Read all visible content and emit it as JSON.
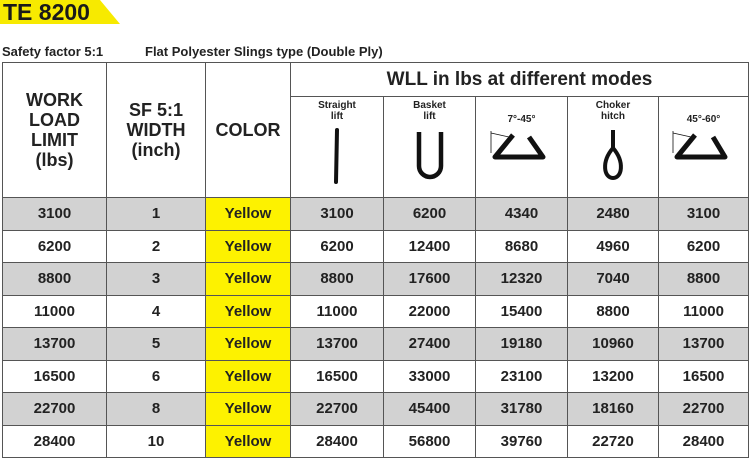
{
  "title": "TE 8200",
  "subtitle_left": "Safety factor 5:1",
  "subtitle_right": "Flat Polyester Slings type  (Double Ply)",
  "headers": {
    "wll": "WORK LOAD LIMIT (lbs)",
    "width": "SF 5:1 WIDTH (inch)",
    "color": "COLOR",
    "modes_title": "WLL in lbs  at different modes"
  },
  "modes": [
    {
      "label": "Straight lift",
      "icon": "straight-lift-icon"
    },
    {
      "label": "Basket lift",
      "icon": "basket-lift-icon"
    },
    {
      "label": "7°-45°",
      "icon": "angle-basket-7-45-icon"
    },
    {
      "label": "Choker hitch",
      "icon": "choker-hitch-icon"
    },
    {
      "label": "45°-60°",
      "icon": "angle-basket-45-60-icon"
    }
  ],
  "colors": {
    "banner": "#f7ea00",
    "yellow_cell": "#fdf200",
    "row_shade": "#d2d2d2"
  },
  "rows": [
    [
      "3100",
      "1",
      "Yellow",
      "3100",
      "6200",
      "4340",
      "2480",
      "3100"
    ],
    [
      "6200",
      "2",
      "Yellow",
      "6200",
      "12400",
      "8680",
      "4960",
      "6200"
    ],
    [
      "8800",
      "3",
      "Yellow",
      "8800",
      "17600",
      "12320",
      "7040",
      "8800"
    ],
    [
      "11000",
      "4",
      "Yellow",
      "11000",
      "22000",
      "15400",
      "8800",
      "11000"
    ],
    [
      "13700",
      "5",
      "Yellow",
      "13700",
      "27400",
      "19180",
      "10960",
      "13700"
    ],
    [
      "16500",
      "6",
      "Yellow",
      "16500",
      "33000",
      "23100",
      "13200",
      "16500"
    ],
    [
      "22700",
      "8",
      "Yellow",
      "22700",
      "45400",
      "31780",
      "18160",
      "22700"
    ],
    [
      "28400",
      "10",
      "Yellow",
      "28400",
      "56800",
      "39760",
      "22720",
      "28400"
    ]
  ]
}
